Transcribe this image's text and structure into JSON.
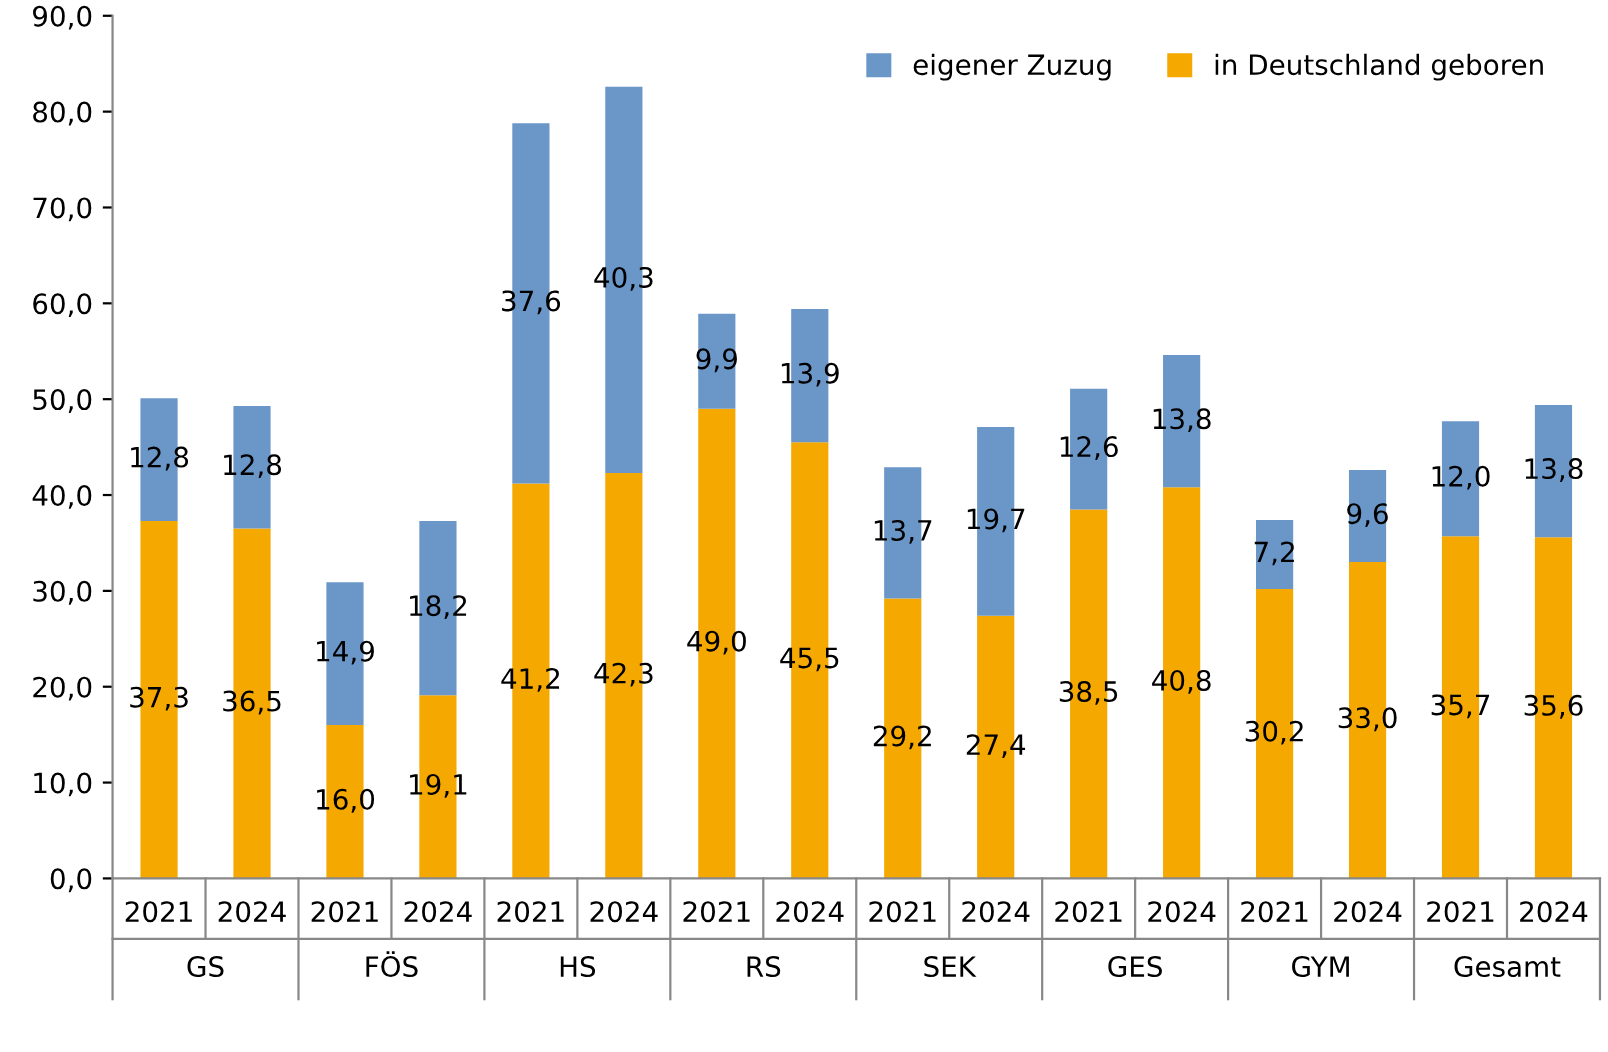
{
  "chart_data": {
    "type": "bar",
    "stacked": true,
    "categories": [
      "2021",
      "2024",
      "2021",
      "2024",
      "2021",
      "2024",
      "2021",
      "2024",
      "2021",
      "2024",
      "2021",
      "2024",
      "2021",
      "2024",
      "2021",
      "2024"
    ],
    "annotations": [
      "GS",
      "FÖS",
      "HS",
      "RS",
      "SEK",
      "GES",
      "GYM",
      "Gesamt"
    ],
    "series": [
      {
        "name": "in Deutschland geboren",
        "color": "#f5a800",
        "values": [
          37.3,
          36.5,
          16.0,
          19.1,
          41.2,
          42.3,
          49.0,
          45.5,
          29.2,
          27.4,
          38.5,
          40.8,
          30.2,
          33.0,
          35.7,
          35.6
        ],
        "value_labels": [
          "37,3",
          "36,5",
          "16,0",
          "19,1",
          "41,2",
          "42,3",
          "49,0",
          "45,5",
          "29,2",
          "27,4",
          "38,5",
          "40,8",
          "30,2",
          "33,0",
          "35,7",
          "35,6"
        ]
      },
      {
        "name": "eigener Zuzug",
        "color": "#6a96c8",
        "values": [
          12.8,
          12.8,
          14.9,
          18.2,
          37.6,
          40.3,
          9.9,
          13.9,
          13.7,
          19.7,
          12.6,
          13.8,
          7.2,
          9.6,
          12.0,
          13.8
        ],
        "value_labels": [
          "12,8",
          "12,8",
          "14,9",
          "18,2",
          "37,6",
          "40,3",
          "9,9",
          "13,9",
          "13,7",
          "19,7",
          "12,6",
          "13,8",
          "7,2",
          "9,6",
          "12,0",
          "13,8"
        ]
      }
    ],
    "ylim": [
      0,
      90
    ],
    "yticks": [
      {
        "value": 0,
        "label": "0,0"
      },
      {
        "value": 10,
        "label": "10,0"
      },
      {
        "value": 20,
        "label": "20,0"
      },
      {
        "value": 30,
        "label": "30,0"
      },
      {
        "value": 40,
        "label": "40,0"
      },
      {
        "value": 50,
        "label": "50,0"
      },
      {
        "value": 60,
        "label": "60,0"
      },
      {
        "value": 70,
        "label": "70,0"
      },
      {
        "value": 80,
        "label": "80,0"
      },
      {
        "value": 90,
        "label": "90,0"
      }
    ],
    "grid": false,
    "legend": "top right"
  }
}
